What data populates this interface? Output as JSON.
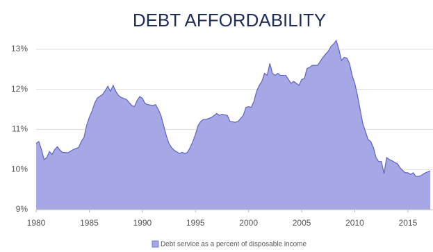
{
  "chart_data": {
    "type": "area",
    "title": "DEBT AFFORDABILITY",
    "x": [
      1980,
      1980.25,
      1980.5,
      1980.75,
      1981,
      1981.25,
      1981.5,
      1981.75,
      1982,
      1982.25,
      1982.5,
      1983,
      1983.5,
      1984,
      1984.25,
      1984.5,
      1984.75,
      1985,
      1985.25,
      1985.5,
      1985.75,
      1986,
      1986.25,
      1986.5,
      1986.75,
      1987,
      1987.25,
      1987.5,
      1987.75,
      1988,
      1988.5,
      1989,
      1989.25,
      1989.5,
      1989.75,
      1990,
      1990.25,
      1990.5,
      1991,
      1991.25,
      1991.5,
      1991.75,
      1992,
      1992.25,
      1992.5,
      1992.75,
      1993,
      1993.5,
      1993.75,
      1994,
      1994.25,
      1994.5,
      1994.75,
      1995,
      1995.25,
      1995.5,
      1995.75,
      1996,
      1996.5,
      1996.75,
      1997,
      1997.25,
      1997.5,
      1998,
      1998.25,
      1998.75,
      1999,
      1999.5,
      1999.75,
      2000,
      2000.25,
      2000.5,
      2000.75,
      2001,
      2001.25,
      2001.5,
      2001.75,
      2002,
      2002.25,
      2002.5,
      2002.75,
      2003,
      2003.5,
      2003.75,
      2004,
      2004.25,
      2004.5,
      2004.75,
      2005,
      2005.25,
      2005.5,
      2005.75,
      2006,
      2006.5,
      2006.75,
      2007,
      2007.25,
      2007.5,
      2007.75,
      2008,
      2008.25,
      2008.5,
      2008.75,
      2009,
      2009.25,
      2009.5,
      2009.75,
      2010,
      2010.25,
      2010.5,
      2010.75,
      2011,
      2011.25,
      2011.5,
      2011.75,
      2012,
      2012.25,
      2012.5,
      2012.75,
      2013,
      2013.25,
      2013.5,
      2013.75,
      2014,
      2014.25,
      2014.5,
      2014.75,
      2015,
      2015.25,
      2015.5,
      2015.75,
      2016,
      2016.25,
      2016.5,
      2017.1
    ],
    "series": [
      {
        "name": "Debt service as a percent of disposable income",
        "color": "#a6a8e6",
        "line_color": "#5d61c4",
        "values": [
          10.65,
          10.7,
          10.5,
          10.25,
          10.3,
          10.45,
          10.38,
          10.5,
          10.57,
          10.48,
          10.43,
          10.42,
          10.5,
          10.55,
          10.7,
          10.8,
          11.1,
          11.3,
          11.45,
          11.65,
          11.78,
          11.83,
          11.87,
          11.97,
          12.08,
          11.95,
          12.1,
          11.95,
          11.85,
          11.8,
          11.75,
          11.6,
          11.57,
          11.72,
          11.82,
          11.78,
          11.65,
          11.62,
          11.6,
          11.62,
          11.5,
          11.35,
          11.1,
          10.85,
          10.65,
          10.55,
          10.48,
          10.4,
          10.43,
          10.4,
          10.43,
          10.55,
          10.7,
          10.88,
          11.1,
          11.2,
          11.25,
          11.25,
          11.3,
          11.35,
          11.4,
          11.35,
          11.38,
          11.35,
          11.2,
          11.18,
          11.2,
          11.35,
          11.55,
          11.57,
          11.55,
          11.7,
          11.95,
          12.1,
          12.2,
          12.4,
          12.35,
          12.65,
          12.4,
          12.35,
          12.4,
          12.35,
          12.35,
          12.25,
          12.15,
          12.2,
          12.15,
          12.1,
          12.25,
          12.27,
          12.52,
          12.55,
          12.6,
          12.6,
          12.7,
          12.8,
          12.88,
          12.95,
          13.07,
          13.13,
          13.22,
          13.0,
          12.72,
          12.8,
          12.78,
          12.65,
          12.35,
          12.15,
          11.85,
          11.5,
          11.15,
          10.95,
          10.75,
          10.7,
          10.55,
          10.3,
          10.2,
          10.2,
          9.9,
          10.3,
          10.25,
          10.22,
          10.18,
          10.15,
          10.05,
          9.98,
          9.92,
          9.92,
          9.88,
          9.92,
          9.83,
          9.83,
          9.85,
          9.9,
          9.97
        ]
      }
    ],
    "xlim": [
      1980,
      2017.1
    ],
    "xticks": [
      1980,
      1985,
      1990,
      1995,
      2000,
      2005,
      2010,
      2015
    ],
    "ylim": [
      9,
      13.3
    ],
    "yticks": [
      {
        "value": 9,
        "label": "9%"
      },
      {
        "value": 10,
        "label": "10%"
      },
      {
        "value": 11,
        "label": "11%"
      },
      {
        "value": 12,
        "label": "12%"
      },
      {
        "value": 13,
        "label": "13%"
      }
    ],
    "grid": true,
    "legend": "bottom"
  }
}
